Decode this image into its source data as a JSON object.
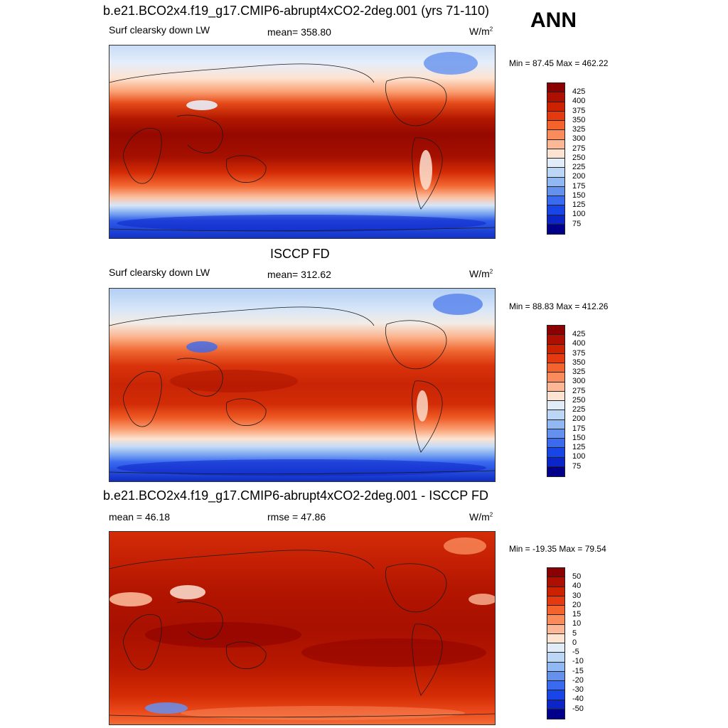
{
  "season": "ANN",
  "panels": [
    {
      "title": "b.e21.BCO2x4.f19_g17.CMIP6-abrupt4xCO2-2deg.001 (yrs 71-110)",
      "left_label": "Surf clearsky down LW",
      "center_label": "mean= 358.80",
      "units_base": "W/m",
      "units_exp": "2",
      "minmax": "Min =  87.45 Max = 462.22",
      "colorbar_ticks": [
        "425",
        "400",
        "375",
        "350",
        "325",
        "300",
        "275",
        "250",
        "225",
        "200",
        "175",
        "150",
        "125",
        "100",
        "75"
      ],
      "colorbar_colors": [
        "#8b0000",
        "#ad0f00",
        "#cc2200",
        "#e53a0f",
        "#f4632b",
        "#fa8c5c",
        "#fcb896",
        "#fde3d2",
        "#e0edf9",
        "#bcd7f6",
        "#91b8f2",
        "#6591ee",
        "#3a6af0",
        "#1745e8",
        "#0c25c9",
        "#00008b"
      ]
    },
    {
      "title": "ISCCP FD",
      "left_label": "Surf clearsky down LW",
      "center_label": "mean= 312.62",
      "units_base": "W/m",
      "units_exp": "2",
      "minmax": "Min =  88.83 Max = 412.26",
      "colorbar_ticks": [
        "425",
        "400",
        "375",
        "350",
        "325",
        "300",
        "275",
        "250",
        "225",
        "200",
        "175",
        "150",
        "125",
        "100",
        "75"
      ],
      "colorbar_colors": [
        "#8b0000",
        "#ad0f00",
        "#cc2200",
        "#e53a0f",
        "#f4632b",
        "#fa8c5c",
        "#fcb896",
        "#fde3d2",
        "#e0edf9",
        "#bcd7f6",
        "#91b8f2",
        "#6591ee",
        "#3a6af0",
        "#1745e8",
        "#0c25c9",
        "#00008b"
      ]
    },
    {
      "title": "b.e21.BCO2x4.f19_g17.CMIP6-abrupt4xCO2-2deg.001 - ISCCP FD",
      "left_label": "mean =  46.18",
      "center_label": "rmse =  47.86",
      "units_base": "W/m",
      "units_exp": "2",
      "minmax": "Min = -19.35 Max =  79.54",
      "colorbar_ticks": [
        "50",
        "40",
        "30",
        "20",
        "15",
        "10",
        "5",
        "0",
        "-5",
        "-10",
        "-15",
        "-20",
        "-30",
        "-40",
        "-50"
      ],
      "colorbar_colors": [
        "#8b0000",
        "#ad0f00",
        "#cc2200",
        "#e53a0f",
        "#f4632b",
        "#fa8c5c",
        "#fcb896",
        "#fde3d2",
        "#e0edf9",
        "#bcd7f6",
        "#91b8f2",
        "#6591ee",
        "#3a6af0",
        "#1745e8",
        "#0c25c9",
        "#00008b"
      ]
    }
  ]
}
